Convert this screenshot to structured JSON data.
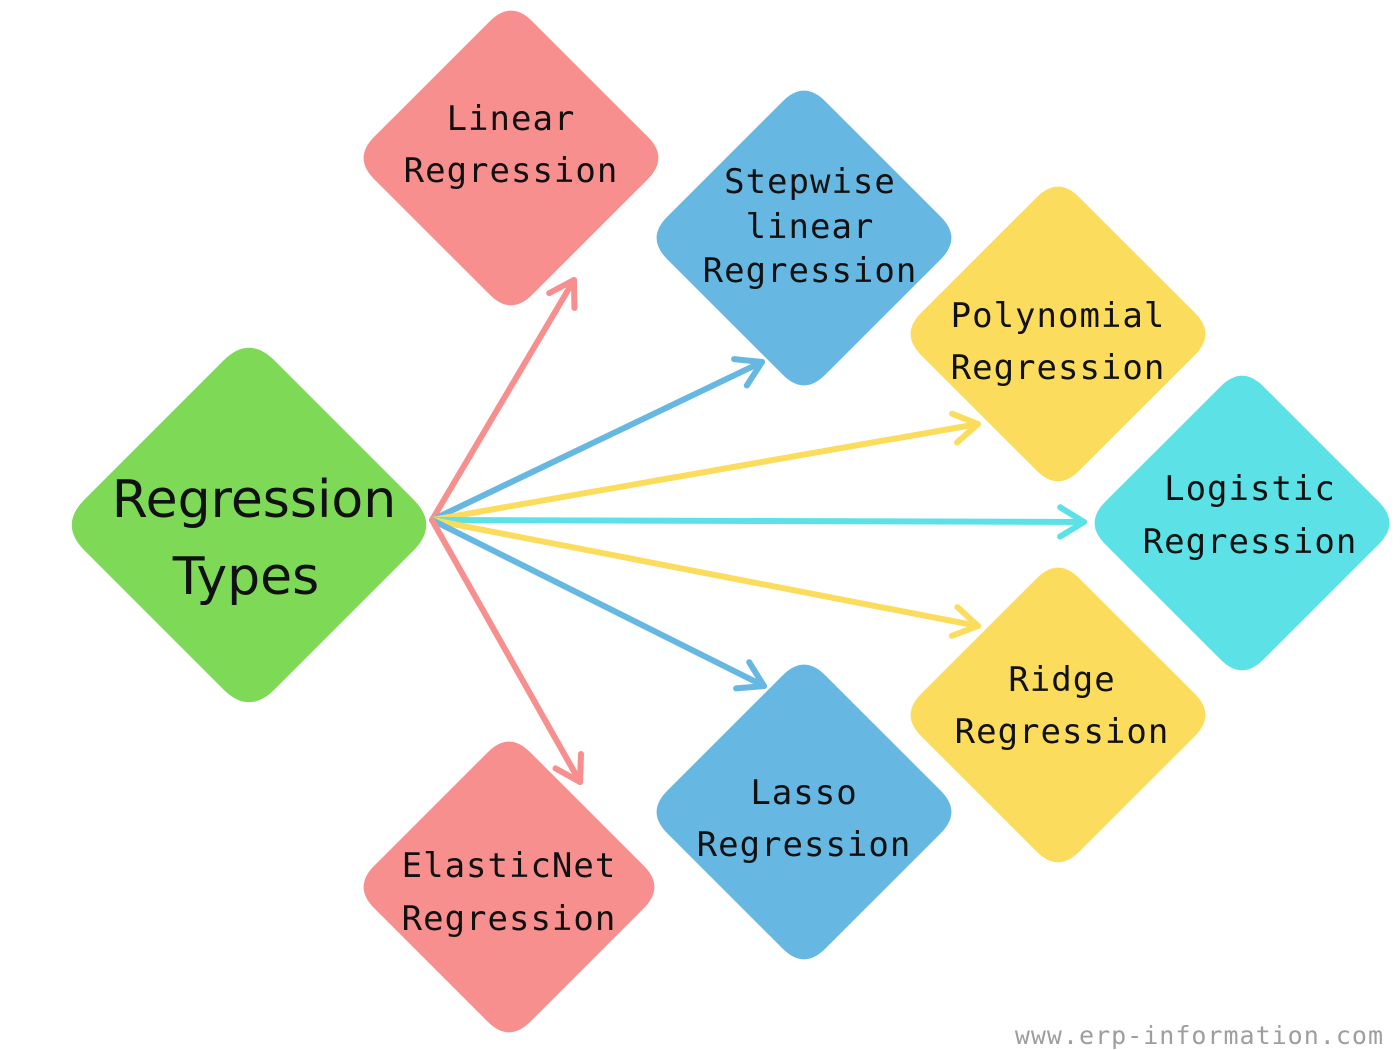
{
  "center": {
    "line1": "Regression",
    "line2": "Types",
    "color": "#7ed957"
  },
  "nodes": [
    {
      "id": "linear",
      "lines": [
        "Linear",
        "Regression"
      ],
      "color": "#f78f8f"
    },
    {
      "id": "stepwise",
      "lines": [
        "Stepwise",
        "linear",
        "Regression"
      ],
      "color": "#66b8e2"
    },
    {
      "id": "polynomial",
      "lines": [
        "Polynomial",
        "Regression"
      ],
      "color": "#fcdc5c"
    },
    {
      "id": "logistic",
      "lines": [
        "Logistic",
        "Regression"
      ],
      "color": "#5ce1e6"
    },
    {
      "id": "ridge",
      "lines": [
        "Ridge",
        "Regression"
      ],
      "color": "#fcdc5c"
    },
    {
      "id": "lasso",
      "lines": [
        "Lasso",
        "Regression"
      ],
      "color": "#66b8e2"
    },
    {
      "id": "elasticnet",
      "lines": [
        "ElasticNet",
        "Regression"
      ],
      "color": "#f78f8f"
    }
  ],
  "footer": {
    "text": "www.erp-information.com"
  }
}
